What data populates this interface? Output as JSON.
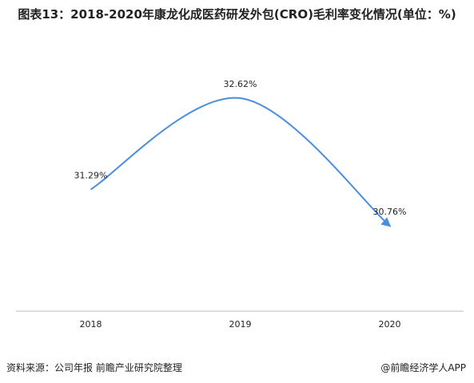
{
  "chart_data": {
    "type": "line",
    "title": "图表13：2018-2020年康龙化成医药研发外包(CRO)毛利率变化情况(单位：%)",
    "categories": [
      "2018",
      "2019",
      "2020"
    ],
    "values": [
      31.29,
      32.62,
      30.76
    ],
    "value_labels": [
      "31.29%",
      "32.62%",
      "30.76%"
    ],
    "color": "#4a8ee0"
  },
  "footer": {
    "source": "资料来源：公司年报 前瞻产业研究院整理",
    "brand": "@前瞻经济学人APP"
  }
}
